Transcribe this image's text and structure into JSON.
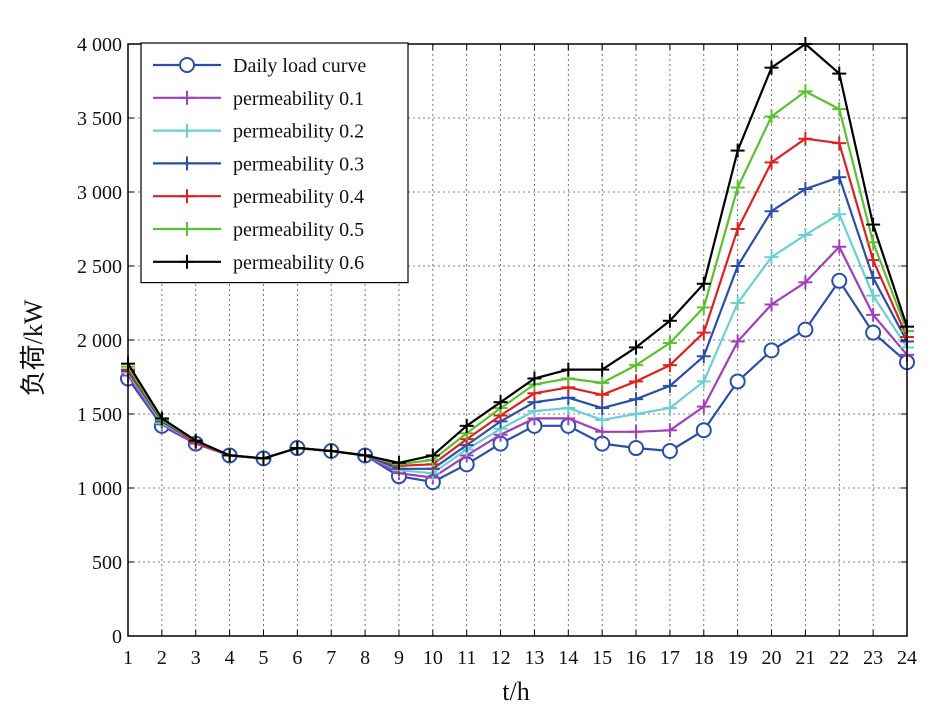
{
  "chart_data": {
    "type": "line",
    "xlabel": "t/h",
    "ylabel": "负荷/kW",
    "xlim": [
      1,
      24
    ],
    "ylim": [
      0,
      4000
    ],
    "x": [
      1,
      2,
      3,
      4,
      5,
      6,
      7,
      8,
      9,
      10,
      11,
      12,
      13,
      14,
      15,
      16,
      17,
      18,
      19,
      20,
      21,
      22,
      23,
      24
    ],
    "x_ticks": [
      "1",
      "2",
      "3",
      "4",
      "5",
      "6",
      "7",
      "8",
      "9",
      "10",
      "11",
      "12",
      "13",
      "14",
      "15",
      "16",
      "17",
      "18",
      "19",
      "20",
      "21",
      "22",
      "23",
      "24"
    ],
    "y_ticks": [
      {
        "value": 0,
        "label": "0"
      },
      {
        "value": 500,
        "label": "500"
      },
      {
        "value": 1000,
        "label": "1 000"
      },
      {
        "value": 1500,
        "label": "1 500"
      },
      {
        "value": 2000,
        "label": "2 000"
      },
      {
        "value": 2500,
        "label": "2 500"
      },
      {
        "value": 3000,
        "label": "3 000"
      },
      {
        "value": 3500,
        "label": "3 500"
      },
      {
        "value": 4000,
        "label": "4 000"
      }
    ],
    "grid": true,
    "legend_position": "top-left",
    "series": [
      {
        "name": "Daily load curve",
        "color": "#2a4fa8",
        "marker": "circle",
        "values": [
          1740,
          1420,
          1300,
          1220,
          1200,
          1270,
          1250,
          1220,
          1080,
          1040,
          1160,
          1300,
          1420,
          1420,
          1300,
          1270,
          1250,
          1390,
          1720,
          1930,
          2070,
          2400,
          2050,
          1850
        ]
      },
      {
        "name": "permeability 0.1",
        "color": "#a040b8",
        "marker": "plus",
        "values": [
          1760,
          1430,
          1300,
          1220,
          1200,
          1270,
          1250,
          1220,
          1100,
          1070,
          1220,
          1360,
          1470,
          1470,
          1380,
          1380,
          1390,
          1550,
          1990,
          2240,
          2390,
          2630,
          2170,
          1900
        ]
      },
      {
        "name": "permeability 0.2",
        "color": "#6cd0d0",
        "marker": "plus",
        "values": [
          1780,
          1440,
          1310,
          1220,
          1200,
          1270,
          1250,
          1220,
          1120,
          1100,
          1260,
          1400,
          1520,
          1540,
          1460,
          1500,
          1540,
          1720,
          2250,
          2560,
          2710,
          2850,
          2300,
          1950
        ]
      },
      {
        "name": "permeability 0.3",
        "color": "#2a4fa8",
        "marker": "plus",
        "values": [
          1790,
          1450,
          1310,
          1220,
          1200,
          1270,
          1250,
          1220,
          1130,
          1130,
          1290,
          1450,
          1580,
          1610,
          1540,
          1600,
          1690,
          1890,
          2500,
          2870,
          3020,
          3100,
          2420,
          1990
        ]
      },
      {
        "name": "permeability 0.4",
        "color": "#e02020",
        "marker": "plus",
        "values": [
          1800,
          1460,
          1310,
          1220,
          1200,
          1270,
          1250,
          1220,
          1150,
          1160,
          1330,
          1490,
          1640,
          1680,
          1630,
          1720,
          1830,
          2050,
          2750,
          3200,
          3360,
          3330,
          2540,
          2020
        ]
      },
      {
        "name": "permeability 0.5",
        "color": "#5cc030",
        "marker": "plus",
        "values": [
          1820,
          1460,
          1320,
          1220,
          1200,
          1270,
          1250,
          1220,
          1160,
          1190,
          1370,
          1540,
          1700,
          1740,
          1710,
          1830,
          1980,
          2220,
          3030,
          3510,
          3680,
          3560,
          2660,
          2060
        ]
      },
      {
        "name": "permeability 0.6",
        "color": "#000000",
        "marker": "plus",
        "values": [
          1840,
          1470,
          1320,
          1220,
          1200,
          1270,
          1250,
          1220,
          1170,
          1220,
          1420,
          1580,
          1740,
          1800,
          1800,
          1950,
          2130,
          2380,
          3280,
          3840,
          4000,
          3800,
          2780,
          2090
        ]
      }
    ]
  }
}
